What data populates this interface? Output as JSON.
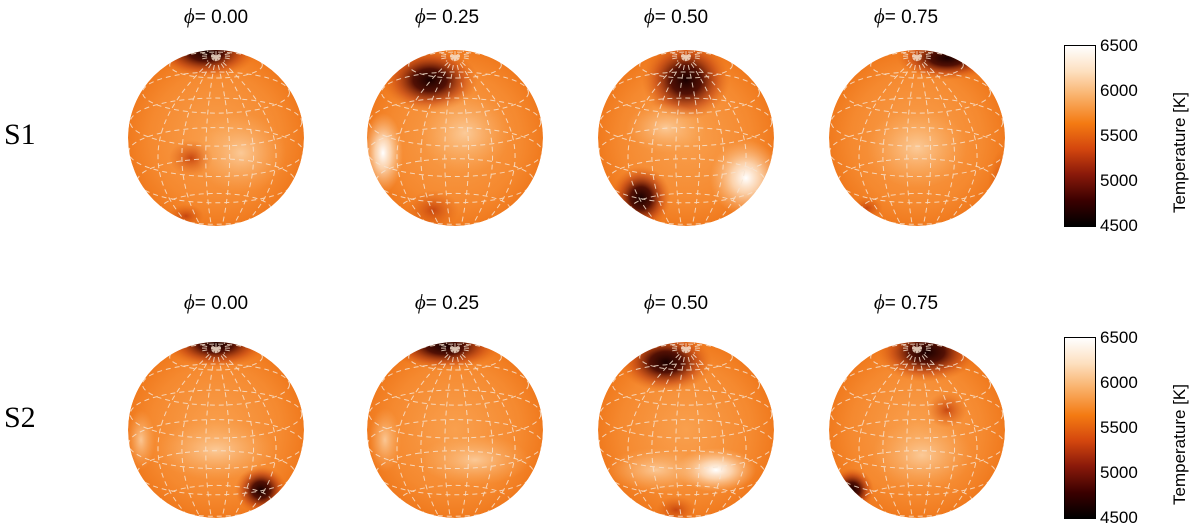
{
  "colorbar": {
    "title": "Temperature [K]",
    "min": 4500,
    "max": 6500,
    "ticks": [
      "4500",
      "5000",
      "5500",
      "6000",
      "6500"
    ],
    "colors": [
      "#000000",
      "#3a0000",
      "#8b1a0a",
      "#d4470e",
      "#f47a12",
      "#f9ad63",
      "#fde0c0",
      "#ffffff"
    ]
  },
  "phase_symbol": "ϕ",
  "rows": [
    {
      "label": "S1",
      "panels": [
        {
          "phase": "= 0.00"
        },
        {
          "phase": "= 0.25"
        },
        {
          "phase": "= 0.50"
        },
        {
          "phase": "= 0.75"
        }
      ]
    },
    {
      "label": "S2",
      "panels": [
        {
          "phase": "= 0.00"
        },
        {
          "phase": "= 0.25"
        },
        {
          "phase": "= 0.50"
        },
        {
          "phase": "= 0.75"
        }
      ]
    }
  ]
}
